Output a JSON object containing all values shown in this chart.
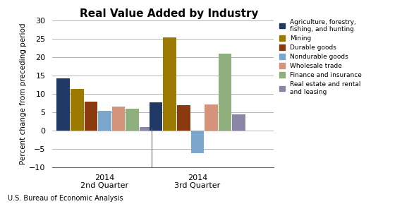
{
  "title": "Real Value Added by Industry",
  "ylabel": "Percent change from preceding period",
  "footnote": "U.S. Bureau of Economic Analysis",
  "groups": [
    "2014\n2nd Quarter",
    "2014\n3rd Quarter"
  ],
  "categories": [
    "Agriculture, forestry,\nfishing, and hunting",
    "Mining",
    "Durable goods",
    "Nondurable goods",
    "Wholesale trade",
    "Finance and insurance",
    "Real estate and rental\nand leasing"
  ],
  "values": [
    [
      14.3,
      11.4,
      7.9,
      5.3,
      6.5,
      6.0,
      1.0
    ],
    [
      7.6,
      25.4,
      6.9,
      -6.2,
      7.2,
      21.0,
      4.4
    ]
  ],
  "colors": [
    "#1F3864",
    "#9C7A00",
    "#8B3A0F",
    "#7BA7CC",
    "#D4937A",
    "#8FAF7E",
    "#8B85A8"
  ],
  "ylim": [
    -10,
    30
  ],
  "yticks": [
    -10,
    -5,
    0,
    5,
    10,
    15,
    20,
    25,
    30
  ],
  "background_color": "#ffffff",
  "grid_color": "#aaaaaa",
  "bar_width": 0.1,
  "group_centers": [
    0.38,
    1.05
  ],
  "xlim": [
    0.0,
    1.6
  ]
}
